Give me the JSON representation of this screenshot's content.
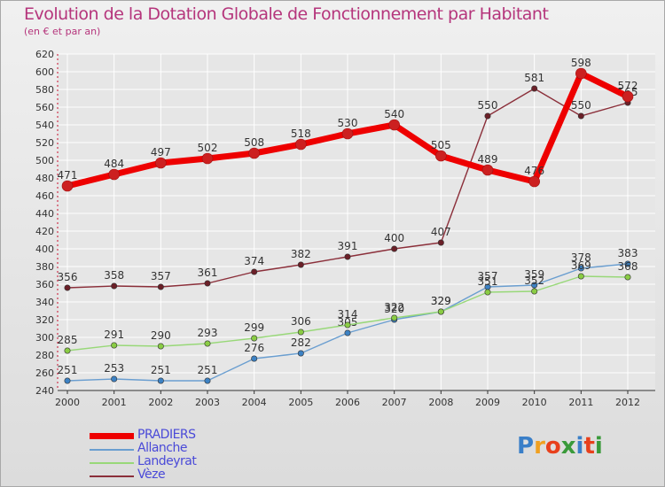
{
  "title": "Evolution de la Dotation Globale de Fonctionnement par Habitant",
  "subtitle": "(en € et par an)",
  "logo": {
    "text": "Proxiti",
    "letter_colors": [
      "#3a7fc8",
      "#f0a020",
      "#e8401c",
      "#3a9a3a",
      "#3a7fc8",
      "#e8401c",
      "#3a9a3a"
    ]
  },
  "colors": {
    "grid": "#ffffff",
    "axis": "#333333",
    "dash_axis": "#c8102e",
    "label": "#333333"
  },
  "chart_data": {
    "type": "line",
    "title": "Evolution de la Dotation Globale de Fonctionnement par Habitant",
    "subtitle": "(en € et par an)",
    "x": [
      "2000",
      "2001",
      "2002",
      "2003",
      "2004",
      "2005",
      "2006",
      "2007",
      "2008",
      "2009",
      "2010",
      "2011",
      "2012"
    ],
    "ylim": [
      240,
      620
    ],
    "yticks": [
      240,
      260,
      280,
      300,
      320,
      340,
      360,
      380,
      400,
      420,
      440,
      460,
      480,
      500,
      520,
      540,
      560,
      580,
      600,
      620
    ],
    "grid": true,
    "legend_position": "bottom-left",
    "series": [
      {
        "name": "PRADIERS",
        "color": "#ee0000",
        "marker": "#cc2020",
        "emphasis": true,
        "values": [
          471,
          484,
          497,
          502,
          508,
          518,
          530,
          540,
          505,
          489,
          476,
          598,
          572
        ]
      },
      {
        "name": "Allanche",
        "color": "#6a9ed0",
        "marker": "#3d82c4",
        "emphasis": false,
        "values": [
          251,
          253,
          251,
          251,
          276,
          282,
          305,
          320,
          329,
          357,
          359,
          378,
          383
        ]
      },
      {
        "name": "Landeyrat",
        "color": "#98d878",
        "marker": "#8acc44",
        "emphasis": false,
        "values": [
          285,
          291,
          290,
          293,
          299,
          306,
          314,
          322,
          329,
          351,
          352,
          369,
          368
        ]
      },
      {
        "name": "Vèze",
        "color": "#8b2f3a",
        "marker": "#6b2028",
        "emphasis": false,
        "values": [
          356,
          358,
          357,
          361,
          374,
          382,
          391,
          400,
          407,
          550,
          581,
          550,
          565
        ]
      }
    ]
  }
}
